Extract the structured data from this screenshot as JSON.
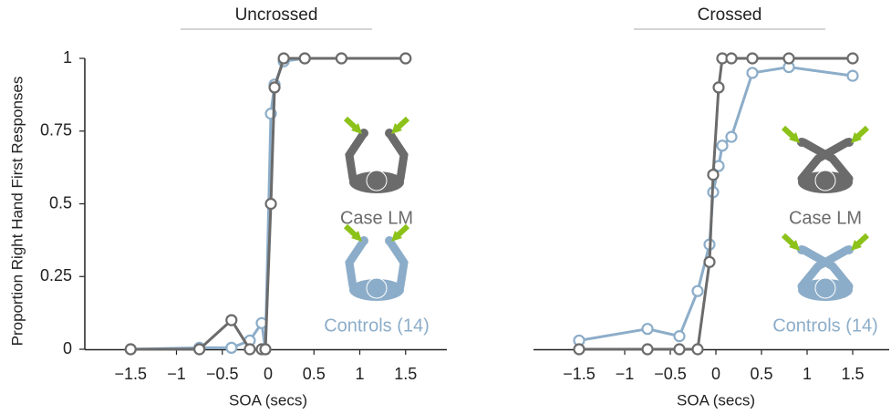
{
  "chart_data": [
    {
      "type": "line",
      "title": "Uncrossed",
      "xlabel": "SOA (secs)",
      "ylabel": "Proportion Right Hand First Responses",
      "x": [
        -1.5,
        -0.75,
        -0.4,
        -0.2,
        -0.07,
        -0.03,
        0.03,
        0.07,
        0.17,
        0.4,
        0.8,
        1.5
      ],
      "series": [
        {
          "name": "Controls (14)",
          "color": "#8cadc9",
          "values": [
            0,
            0.005,
            0.005,
            0.03,
            0.09,
            0,
            0.81,
            0.91,
            0.99,
            1,
            1,
            1
          ]
        },
        {
          "name": "Case LM",
          "color": "#6b6b6b",
          "values": [
            0,
            0,
            0.1,
            0,
            0,
            0,
            0.5,
            0.9,
            1,
            1,
            1,
            1
          ]
        }
      ],
      "xlim": [
        -2,
        1.95
      ],
      "ylim": [
        0,
        1
      ],
      "xticks": [
        {
          "value": -1.5,
          "label": "−1.5"
        },
        {
          "value": -1,
          "label": "−1"
        },
        {
          "value": -0.5,
          "label": "−0.5"
        },
        0,
        0.5,
        1,
        1.5
      ],
      "yticks": [
        0,
        0.25,
        0.5,
        0.75,
        1
      ]
    },
    {
      "type": "line",
      "title": "Crossed",
      "xlabel": "SOA (secs)",
      "x": [
        -1.5,
        -0.75,
        -0.4,
        -0.2,
        -0.07,
        -0.03,
        0.03,
        0.07,
        0.17,
        0.4,
        0.8,
        1.5
      ],
      "series": [
        {
          "name": "Controls (14)",
          "color": "#8cadc9",
          "values": [
            0.03,
            0.07,
            0.045,
            0.2,
            0.36,
            0.54,
            0.63,
            0.7,
            0.73,
            0.95,
            0.97,
            0.94
          ]
        },
        {
          "name": "Case LM",
          "color": "#6b6b6b",
          "values": [
            0,
            0,
            0,
            0,
            0.3,
            0.6,
            0.9,
            1,
            1,
            1,
            1,
            1
          ]
        }
      ],
      "xlim": [
        -2,
        1.9
      ],
      "ylim": [
        0,
        1
      ],
      "xticks": [
        {
          "value": -1.5,
          "label": "−1.5"
        },
        {
          "value": -1,
          "label": "−1"
        },
        {
          "value": -0.5,
          "label": "−0.5"
        },
        0,
        0.5,
        1,
        1.5
      ]
    }
  ]
}
